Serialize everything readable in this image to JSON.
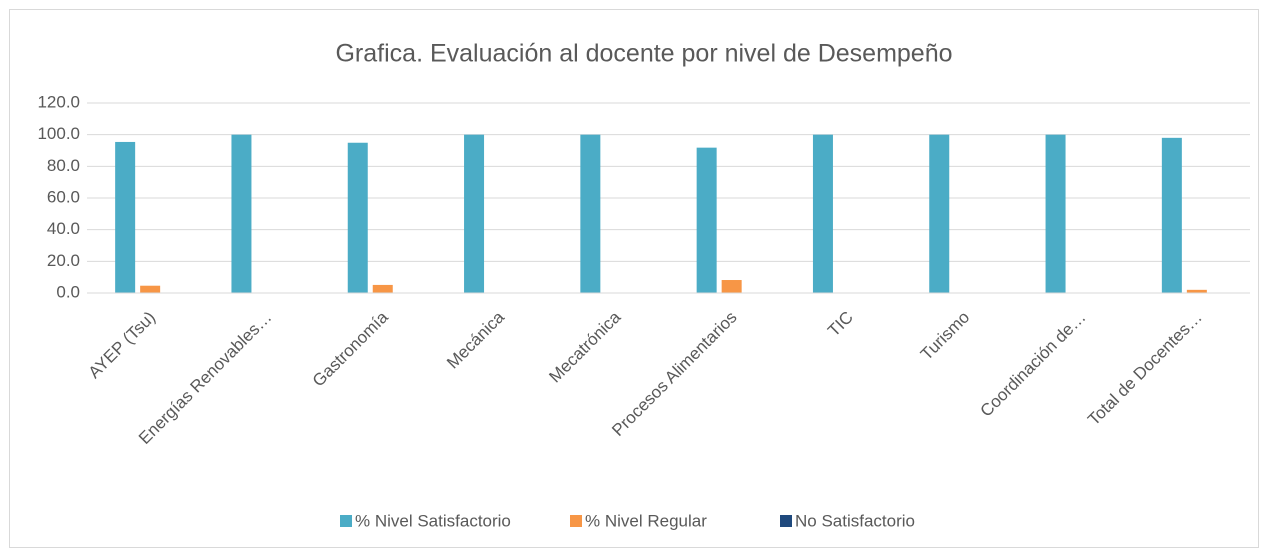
{
  "chart_data": {
    "type": "bar",
    "title": "Grafica. Evaluación al docente por nivel de Desempeño",
    "categories": [
      "AYEP (Tsu)",
      "Energías Renovables…",
      "Gastronomía",
      "Mecánica",
      "Mecatrónica",
      "Procesos Alimentarios",
      "TIC",
      "Turismo",
      "Coordinación de…",
      "Total de Docentes…"
    ],
    "series": [
      {
        "name": "% Nivel Satisfactorio",
        "color": "#4bacc6",
        "values": [
          95.4,
          100,
          94.9,
          100,
          100,
          91.8,
          100,
          100,
          100,
          98.0
        ]
      },
      {
        "name": "% Nivel Regular",
        "color": "#f79646",
        "values": [
          4.6,
          0,
          5.1,
          0,
          0,
          8.2,
          0,
          0,
          0,
          2.0
        ]
      },
      {
        "name": "No Satisfactorio",
        "color": "#1f497d",
        "values": [
          0,
          0,
          0,
          0,
          0,
          0,
          0,
          0,
          0,
          0
        ]
      }
    ],
    "ylim": [
      0,
      120
    ],
    "yticks": [
      {
        "value": 0,
        "label": "0.0"
      },
      {
        "value": 20,
        "label": "20.0"
      },
      {
        "value": 40,
        "label": "40.0"
      },
      {
        "value": 60,
        "label": "60.0"
      },
      {
        "value": 80,
        "label": "80.0"
      },
      {
        "value": 100,
        "label": "100.0"
      },
      {
        "value": 120,
        "label": "120.0"
      }
    ],
    "grid": true,
    "legend": "bottom"
  }
}
